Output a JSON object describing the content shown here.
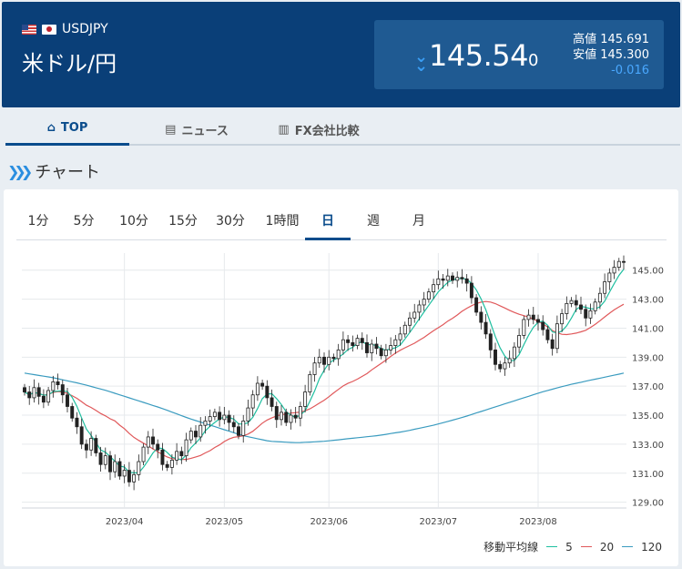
{
  "header": {
    "symbol": "USDJPY",
    "name": "米ドル/円",
    "price_main": "145.54",
    "price_tail": "0",
    "high_label": "高値",
    "high_value": "145.691",
    "low_label": "安値",
    "low_value": "145.300",
    "change": "-0.016"
  },
  "tabs": [
    {
      "label": "TOP",
      "icon": "home-icon"
    },
    {
      "label": "ニュース",
      "icon": "news-icon"
    },
    {
      "label": "FX会社比較",
      "icon": "building-icon"
    }
  ],
  "section": {
    "title": "チャート"
  },
  "periods": [
    "1分",
    "5分",
    "10分",
    "15分",
    "30分",
    "1時間",
    "日",
    "週",
    "月"
  ],
  "active_period": "日",
  "legend": {
    "label": "移動平均線",
    "ma": [
      "5",
      "20",
      "120"
    ]
  },
  "colors": {
    "ma5": "#1fbfa0",
    "ma20": "#e0585a",
    "ma120": "#3a9bbf",
    "candle": "#222222",
    "accent": "#0a4c8c"
  },
  "chart_data": {
    "type": "candlestick",
    "x_tick_labels": [
      "2023/04",
      "2023/05",
      "2023/06",
      "2023/07",
      "2023/08"
    ],
    "y_ticks": [
      129.0,
      131.0,
      133.0,
      135.0,
      137.0,
      139.0,
      141.0,
      143.0,
      145.0
    ],
    "y_tick_labels": [
      "129.00",
      "131.00",
      "133.00",
      "135.00",
      "137.00",
      "139.00",
      "141.00",
      "143.00",
      "145.00"
    ],
    "ylim": [
      128.6,
      145.8
    ],
    "close": [
      136.6,
      136.2,
      136.9,
      136.3,
      135.9,
      136.7,
      137.3,
      137.1,
      136.4,
      135.6,
      134.8,
      134.2,
      133.0,
      132.6,
      133.4,
      132.4,
      131.6,
      132.2,
      131.1,
      131.8,
      130.8,
      131.2,
      130.4,
      130.9,
      131.8,
      132.8,
      133.5,
      133.0,
      132.6,
      131.6,
      131.4,
      131.9,
      132.5,
      132.2,
      133.3,
      133.9,
      133.5,
      134.3,
      134.6,
      134.9,
      135.2,
      134.7,
      135.0,
      134.5,
      134.2,
      133.6,
      134.6,
      135.5,
      136.4,
      137.2,
      137.0,
      136.2,
      135.6,
      134.7,
      135.2,
      134.5,
      135.0,
      134.8,
      135.6,
      136.6,
      137.8,
      138.6,
      139.0,
      138.5,
      139.0,
      138.9,
      139.5,
      140.2,
      140.0,
      139.8,
      140.3,
      140.0,
      139.3,
      139.9,
      139.6,
      139.1,
      139.5,
      139.8,
      140.2,
      140.6,
      141.2,
      141.7,
      142.1,
      142.6,
      143.0,
      143.5,
      144.0,
      144.4,
      144.3,
      144.6,
      144.3,
      144.5,
      144.4,
      144.1,
      143.1,
      142.1,
      141.4,
      140.6,
      139.5,
      138.5,
      138.2,
      138.6,
      138.9,
      139.7,
      140.5,
      141.6,
      141.9,
      141.6,
      141.4,
      140.9,
      140.2,
      139.6,
      141.3,
      142.0,
      142.7,
      142.9,
      142.6,
      142.3,
      141.7,
      142.2,
      142.8,
      143.4,
      144.2,
      144.8,
      145.2,
      145.6,
      145.54
    ]
  }
}
